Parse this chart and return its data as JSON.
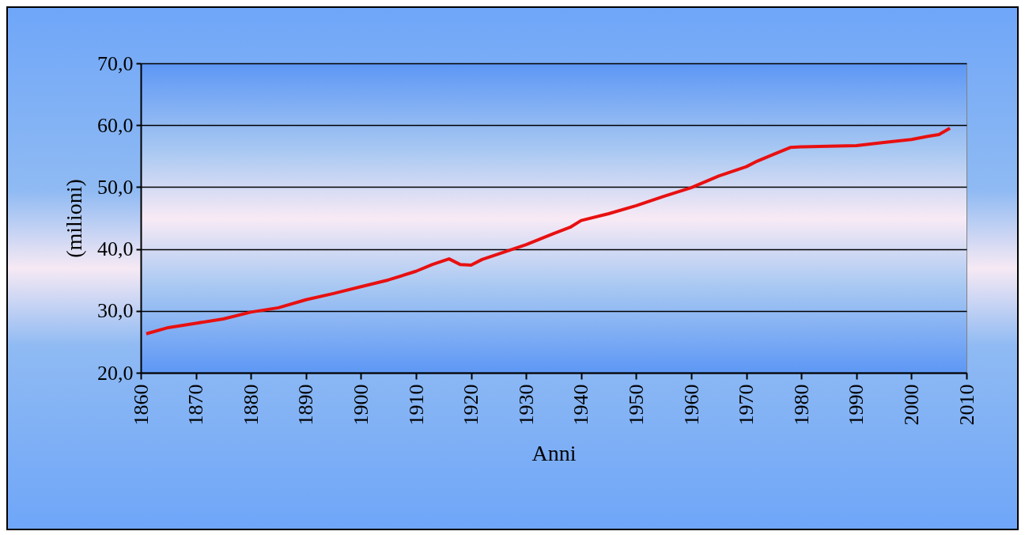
{
  "chart_data": {
    "type": "line",
    "xlabel": "Anni",
    "ylabel": "(milioni)",
    "x": [
      1861,
      1865,
      1870,
      1875,
      1880,
      1885,
      1890,
      1895,
      1900,
      1905,
      1910,
      1913,
      1916,
      1918,
      1920,
      1922,
      1925,
      1930,
      1935,
      1938,
      1940,
      1945,
      1950,
      1955,
      1960,
      1965,
      1970,
      1972,
      1975,
      1978,
      1980,
      1985,
      1990,
      1995,
      2000,
      2003,
      2005,
      2007
    ],
    "series": [
      {
        "color": "#e81010",
        "values": [
          26.3,
          27.3,
          28.0,
          28.7,
          29.8,
          30.5,
          31.8,
          32.8,
          33.9,
          35.0,
          36.4,
          37.5,
          38.4,
          37.5,
          37.4,
          38.3,
          39.2,
          40.7,
          42.5,
          43.5,
          44.6,
          45.7,
          47.0,
          48.5,
          49.9,
          51.8,
          53.3,
          54.2,
          55.3,
          56.4,
          56.5,
          56.6,
          56.7,
          57.2,
          57.7,
          58.2,
          58.5,
          59.5
        ]
      }
    ],
    "xlim": [
      1860,
      2010
    ],
    "xticks": [
      1860,
      1870,
      1880,
      1890,
      1900,
      1910,
      1920,
      1930,
      1940,
      1950,
      1960,
      1970,
      1980,
      1990,
      2000,
      2010
    ],
    "ylim": [
      20,
      70
    ],
    "yticks": [
      {
        "value": 20,
        "label": "20,0"
      },
      {
        "value": 30,
        "label": "30,0"
      },
      {
        "value": 40,
        "label": "40,0"
      },
      {
        "value": 50,
        "label": "50,0"
      },
      {
        "value": 60,
        "label": "60,0"
      },
      {
        "value": 70,
        "label": "70,0"
      }
    ],
    "grid": "y",
    "legend": false,
    "marker": "none",
    "line_style": "solid"
  }
}
